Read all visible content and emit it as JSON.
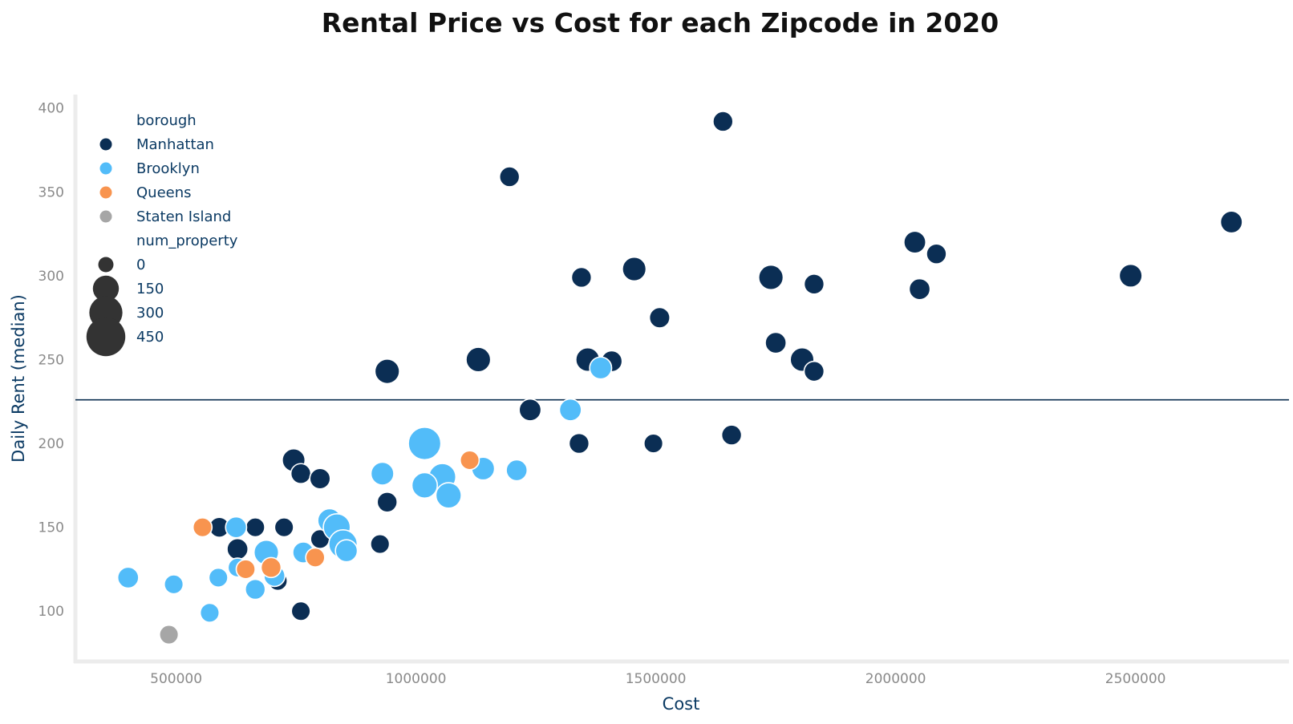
{
  "chart_data": {
    "type": "scatter",
    "title": "Rental Price vs Cost for each Zipcode in 2020",
    "xlabel": "Cost",
    "ylabel": "Daily Rent (median)",
    "xlim": [
      290000,
      2820000
    ],
    "ylim": [
      70,
      408
    ],
    "xticks": [
      500000,
      1000000,
      1500000,
      2000000,
      2500000
    ],
    "yticks": [
      100,
      150,
      200,
      250,
      300,
      350,
      400
    ],
    "grid": false,
    "reference_line": {
      "y": 226,
      "color": "#0b2e4f"
    },
    "legend": {
      "placement": "top-left",
      "hue_title": "borough",
      "size_title": "num_property",
      "size_levels": [
        0,
        150,
        300,
        450
      ]
    },
    "colors": {
      "Manhattan": "#0b2e54",
      "Brooklyn": "#52bcf9",
      "Queens": "#f8944f",
      "Staten Island": "#a6a6a6",
      "size_legend_marker": "#333333"
    },
    "series": [
      {
        "name": "Manhattan",
        "points": [
          {
            "x": 1640000,
            "y": 392,
            "n": 40
          },
          {
            "x": 1195000,
            "y": 359,
            "n": 40
          },
          {
            "x": 2700000,
            "y": 332,
            "n": 60
          },
          {
            "x": 2040000,
            "y": 320,
            "n": 60
          },
          {
            "x": 2085000,
            "y": 313,
            "n": 40
          },
          {
            "x": 1455000,
            "y": 304,
            "n": 80
          },
          {
            "x": 1345000,
            "y": 299,
            "n": 40
          },
          {
            "x": 1740000,
            "y": 299,
            "n": 90
          },
          {
            "x": 2490000,
            "y": 300,
            "n": 70
          },
          {
            "x": 1830000,
            "y": 295,
            "n": 40
          },
          {
            "x": 2050000,
            "y": 292,
            "n": 50
          },
          {
            "x": 1508000,
            "y": 275,
            "n": 45
          },
          {
            "x": 1750000,
            "y": 260,
            "n": 50
          },
          {
            "x": 1130000,
            "y": 250,
            "n": 90
          },
          {
            "x": 1358000,
            "y": 250,
            "n": 80
          },
          {
            "x": 1408000,
            "y": 249,
            "n": 50
          },
          {
            "x": 1805000,
            "y": 250,
            "n": 80
          },
          {
            "x": 940000,
            "y": 243,
            "n": 90
          },
          {
            "x": 1830000,
            "y": 243,
            "n": 40
          },
          {
            "x": 1238000,
            "y": 220,
            "n": 60
          },
          {
            "x": 1340000,
            "y": 200,
            "n": 40
          },
          {
            "x": 1495000,
            "y": 200,
            "n": 30
          },
          {
            "x": 1658000,
            "y": 205,
            "n": 40
          },
          {
            "x": 745000,
            "y": 190,
            "n": 70
          },
          {
            "x": 760000,
            "y": 182,
            "n": 40
          },
          {
            "x": 800000,
            "y": 179,
            "n": 45
          },
          {
            "x": 940000,
            "y": 165,
            "n": 40
          },
          {
            "x": 590000,
            "y": 150,
            "n": 40
          },
          {
            "x": 665000,
            "y": 150,
            "n": 30
          },
          {
            "x": 725000,
            "y": 150,
            "n": 30
          },
          {
            "x": 800000,
            "y": 143,
            "n": 30
          },
          {
            "x": 925000,
            "y": 140,
            "n": 30
          },
          {
            "x": 628000,
            "y": 137,
            "n": 50
          },
          {
            "x": 712000,
            "y": 118,
            "n": 30
          },
          {
            "x": 760000,
            "y": 100,
            "n": 30
          }
        ]
      },
      {
        "name": "Brooklyn",
        "points": [
          {
            "x": 1385000,
            "y": 245,
            "n": 60
          },
          {
            "x": 1322000,
            "y": 220,
            "n": 60
          },
          {
            "x": 1018000,
            "y": 200,
            "n": 200
          },
          {
            "x": 930000,
            "y": 182,
            "n": 70
          },
          {
            "x": 1055000,
            "y": 180,
            "n": 120
          },
          {
            "x": 1140000,
            "y": 185,
            "n": 70
          },
          {
            "x": 1210000,
            "y": 184,
            "n": 50
          },
          {
            "x": 1018000,
            "y": 175,
            "n": 100
          },
          {
            "x": 1068000,
            "y": 169,
            "n": 100
          },
          {
            "x": 820000,
            "y": 154,
            "n": 80
          },
          {
            "x": 835000,
            "y": 150,
            "n": 120
          },
          {
            "x": 625000,
            "y": 150,
            "n": 50
          },
          {
            "x": 848000,
            "y": 140,
            "n": 140
          },
          {
            "x": 855000,
            "y": 136,
            "n": 60
          },
          {
            "x": 688000,
            "y": 135,
            "n": 90
          },
          {
            "x": 765000,
            "y": 135,
            "n": 50
          },
          {
            "x": 628000,
            "y": 126,
            "n": 30
          },
          {
            "x": 705000,
            "y": 121,
            "n": 50
          },
          {
            "x": 400000,
            "y": 120,
            "n": 50
          },
          {
            "x": 588000,
            "y": 120,
            "n": 30
          },
          {
            "x": 495000,
            "y": 116,
            "n": 30
          },
          {
            "x": 665000,
            "y": 113,
            "n": 40
          },
          {
            "x": 570000,
            "y": 99,
            "n": 30
          }
        ]
      },
      {
        "name": "Queens",
        "points": [
          {
            "x": 1112000,
            "y": 190,
            "n": 30
          },
          {
            "x": 555000,
            "y": 150,
            "n": 30
          },
          {
            "x": 698000,
            "y": 126,
            "n": 40
          },
          {
            "x": 645000,
            "y": 125,
            "n": 30
          },
          {
            "x": 790000,
            "y": 132,
            "n": 30
          }
        ]
      },
      {
        "name": "Staten Island",
        "points": [
          {
            "x": 485000,
            "y": 86,
            "n": 30
          }
        ]
      }
    ]
  }
}
